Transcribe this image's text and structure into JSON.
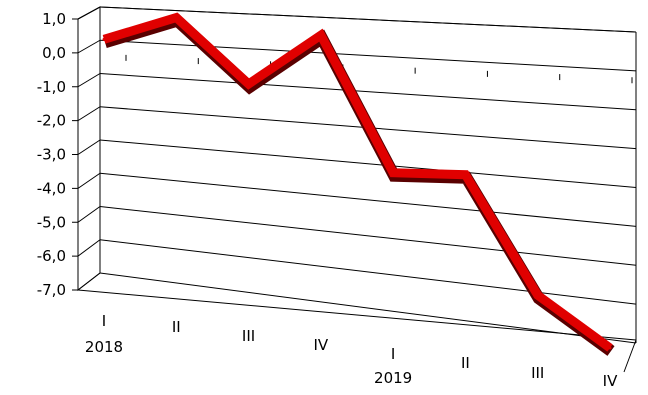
{
  "chart_data": {
    "type": "line",
    "style": "3d-ribbon",
    "categories": [
      {
        "quarter": "I",
        "year": "2018"
      },
      {
        "quarter": "II",
        "year": ""
      },
      {
        "quarter": "III",
        "year": ""
      },
      {
        "quarter": "IV",
        "year": ""
      },
      {
        "quarter": "I",
        "year": "2019"
      },
      {
        "quarter": "II",
        "year": ""
      },
      {
        "quarter": "III",
        "year": ""
      },
      {
        "quarter": "IV",
        "year": ""
      }
    ],
    "series": [
      {
        "values": [
          0.4,
          1.1,
          -0.8,
          0.7,
          -3.3,
          -3.3,
          -6.8,
          -8.3
        ]
      }
    ],
    "yticks": [
      "1,0",
      "0,0",
      "-1,0",
      "-2,0",
      "-3,0",
      "-4,0",
      "-5,0",
      "-6,0",
      "-7,0"
    ],
    "ylim": [
      -7,
      1
    ],
    "grid": true,
    "legend": "none",
    "colors": {
      "line": "#e00000",
      "line_shadow": "#5a0000",
      "axis": "#000000"
    }
  }
}
